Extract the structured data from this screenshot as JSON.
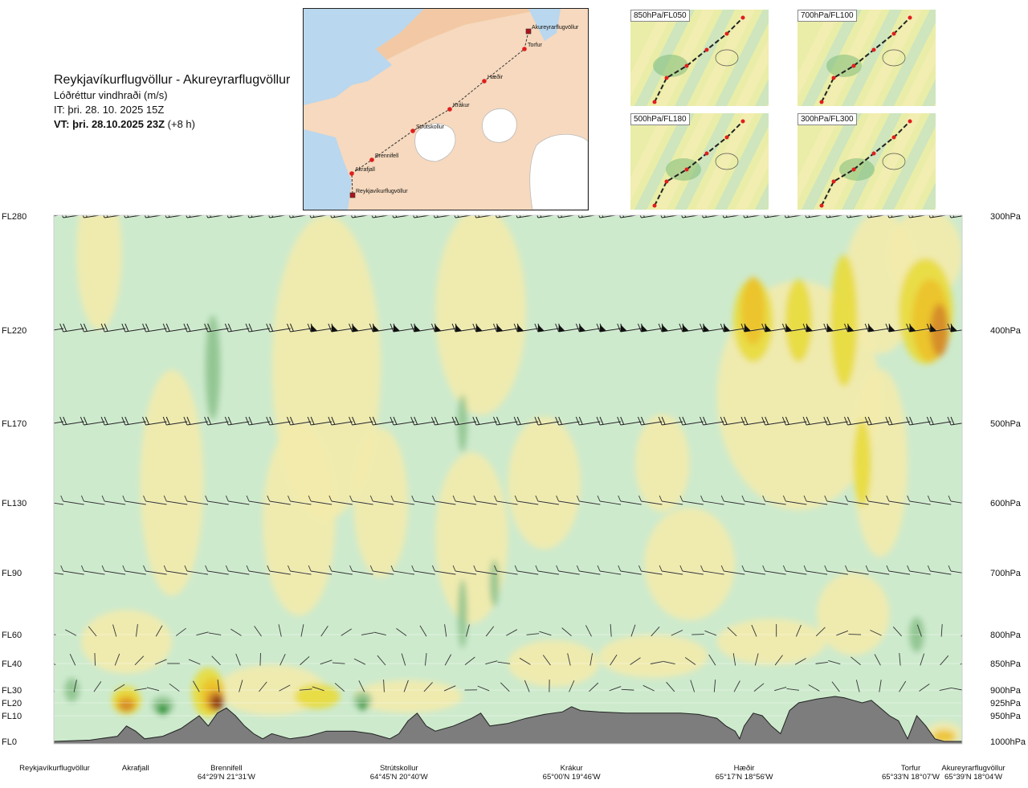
{
  "header": {
    "route": "Reykjavíkurflugvöllur - Akureyrarflugvöllur",
    "variable": "Lóðréttur vindhraði (m/s)",
    "issue_time": "IT: þri. 28. 10. 2025 15Z",
    "valid_time": "VT: þri. 28.10.2025 23Z",
    "lead_time": "(+8 h)"
  },
  "map": {
    "waypoints": [
      {
        "name": "Akureyrarflugvöllur",
        "kind": "airport"
      },
      {
        "name": "Torfur",
        "kind": "point"
      },
      {
        "name": "Hæðir",
        "kind": "point"
      },
      {
        "name": "Krákur",
        "kind": "point"
      },
      {
        "name": "Strútskollur",
        "kind": "point"
      },
      {
        "name": "Brennifell",
        "kind": "point"
      },
      {
        "name": "Akrafjall",
        "kind": "point"
      },
      {
        "name": "Reykjavíkurflugvöllur",
        "kind": "airport"
      }
    ]
  },
  "thumbnails": [
    {
      "label": "850hPa/FL050"
    },
    {
      "label": "700hPa/FL100"
    },
    {
      "label": "500hPa/FL180"
    },
    {
      "label": "300hPa/FL300"
    }
  ],
  "colors": {
    "strong_down": "#1f8f2e",
    "moderate_down": "#8dc28d",
    "weak_down": "#cdeacd",
    "near_zero": "#fefde6",
    "weak_up": "#f3ebac",
    "moderate_up": "#e8dc3c",
    "strong_up": "#ecc12a",
    "very_strong_up": "#d4882a",
    "extreme_up": "#8b3a10",
    "terrain": "#7d7d7d"
  },
  "chart_data": {
    "type": "heatmap",
    "title": "Reykjavíkurflugvöllur - Akureyrarflugvöllur",
    "variable": "Lóðréttur vindhraði (m/s)",
    "x_axis": "distance along route",
    "xlim": [
      0,
      100
    ],
    "flight_levels": [
      {
        "label": "FL280",
        "hpa": "300hPa",
        "fl": 280
      },
      {
        "label": "FL220",
        "hpa": "400hPa",
        "fl": 220
      },
      {
        "label": "FL170",
        "hpa": "500hPa",
        "fl": 170
      },
      {
        "label": "FL130",
        "hpa": "600hPa",
        "fl": 130
      },
      {
        "label": "FL90",
        "hpa": "700hPa",
        "fl": 90
      },
      {
        "label": "FL60",
        "hpa": "800hPa",
        "fl": 60
      },
      {
        "label": "FL40",
        "hpa": "850hPa",
        "fl": 40
      },
      {
        "label": "FL30",
        "hpa": "900hPa",
        "fl": 30
      },
      {
        "label": "FL20",
        "hpa": "925hPa",
        "fl": 20
      },
      {
        "label": "FL10",
        "hpa": "950hPa",
        "fl": 10
      },
      {
        "label": "FL0",
        "hpa": "1000hPa",
        "fl": 0
      }
    ],
    "locations": [
      {
        "name": "Reykjavíkurflugvöllur",
        "coord": "",
        "x": 0
      },
      {
        "name": "Akrafjall",
        "coord": "",
        "x": 9
      },
      {
        "name": "Brennifell",
        "coord": "64°29'N 21°31'W",
        "x": 19
      },
      {
        "name": "Strútskollur",
        "coord": "64°45'N 20°40'W",
        "x": 38
      },
      {
        "name": "Krákur",
        "coord": "65°00'N 19°46'W",
        "x": 57
      },
      {
        "name": "Hæðir",
        "coord": "65°17'N 18°56'W",
        "x": 76
      },
      {
        "name": "Torfur",
        "coord": "65°33'N 18°07'W",
        "x": 94
      },
      {
        "name": "Akureyrarflugvöllur",
        "coord": "65°39'N 18°04'W",
        "x": 100
      }
    ],
    "terrain_profile_fl": [
      [
        0,
        0
      ],
      [
        4,
        0.5
      ],
      [
        7,
        2
      ],
      [
        8,
        6
      ],
      [
        9,
        4
      ],
      [
        10,
        1
      ],
      [
        12,
        2
      ],
      [
        14,
        5
      ],
      [
        16,
        10
      ],
      [
        17,
        6
      ],
      [
        18,
        12
      ],
      [
        19,
        16
      ],
      [
        20,
        10
      ],
      [
        21,
        6
      ],
      [
        22,
        3
      ],
      [
        23,
        1
      ],
      [
        24,
        3
      ],
      [
        26,
        1
      ],
      [
        28,
        2
      ],
      [
        30,
        4
      ],
      [
        33,
        4
      ],
      [
        35,
        3
      ],
      [
        36,
        2
      ],
      [
        37,
        1
      ],
      [
        38,
        3
      ],
      [
        39,
        8
      ],
      [
        40,
        12
      ],
      [
        41,
        6
      ],
      [
        42,
        4
      ],
      [
        44,
        6
      ],
      [
        46,
        9
      ],
      [
        47,
        12
      ],
      [
        48,
        6
      ],
      [
        50,
        7
      ],
      [
        52,
        9
      ],
      [
        54,
        11
      ],
      [
        56,
        13
      ],
      [
        57,
        17
      ],
      [
        58,
        14
      ],
      [
        60,
        13
      ],
      [
        63,
        12
      ],
      [
        66,
        12
      ],
      [
        69,
        12
      ],
      [
        71,
        11
      ],
      [
        73,
        9
      ],
      [
        74,
        6
      ],
      [
        75,
        4
      ],
      [
        75.5,
        1
      ],
      [
        76,
        6
      ],
      [
        77,
        12
      ],
      [
        78,
        10
      ],
      [
        79,
        6
      ],
      [
        80,
        3
      ],
      [
        81,
        14
      ],
      [
        82,
        20
      ],
      [
        84,
        23
      ],
      [
        86,
        25
      ],
      [
        87,
        24
      ],
      [
        88,
        22
      ],
      [
        89,
        20
      ],
      [
        90,
        22
      ],
      [
        91,
        16
      ],
      [
        92,
        10
      ],
      [
        93,
        8
      ],
      [
        94,
        1
      ],
      [
        95,
        10
      ],
      [
        96,
        6
      ],
      [
        97,
        1
      ],
      [
        98,
        0
      ],
      [
        100,
        0
      ]
    ],
    "features": [
      {
        "class": "weak_up",
        "x": 5,
        "fl": 260,
        "sx": 2.5,
        "sy": 60
      },
      {
        "class": "weak_up",
        "x": 30,
        "fl": 200,
        "sx": 6,
        "sy": 80
      },
      {
        "class": "weak_up",
        "x": 47,
        "fl": 230,
        "sx": 5,
        "sy": 60
      },
      {
        "class": "weak_up",
        "x": 46,
        "fl": 110,
        "sx": 4,
        "sy": 45
      },
      {
        "class": "weak_up",
        "x": 27,
        "fl": 120,
        "sx": 4,
        "sy": 50
      },
      {
        "class": "weak_up",
        "x": 13,
        "fl": 140,
        "sx": 3.5,
        "sy": 60
      },
      {
        "class": "weak_up",
        "x": 36,
        "fl": 130,
        "sx": 3,
        "sy": 40
      },
      {
        "class": "weak_up",
        "x": 54,
        "fl": 140,
        "sx": 4,
        "sy": 35
      },
      {
        "class": "weak_up",
        "x": 70,
        "fl": 95,
        "sx": 5,
        "sy": 30
      },
      {
        "class": "weak_up",
        "x": 67,
        "fl": 150,
        "sx": 3,
        "sy": 25
      },
      {
        "class": "weak_up",
        "x": 82,
        "fl": 185,
        "sx": 9,
        "sy": 60
      },
      {
        "class": "weak_up",
        "x": 91,
        "fl": 245,
        "sx": 4,
        "sy": 40
      },
      {
        "class": "weak_up",
        "x": 91,
        "fl": 150,
        "sx": 3,
        "sy": 50
      },
      {
        "class": "weak_up",
        "x": 8,
        "fl": 55,
        "sx": 5,
        "sy": 18
      },
      {
        "class": "weak_up",
        "x": 24,
        "fl": 30,
        "sx": 6,
        "sy": 14
      },
      {
        "class": "weak_up",
        "x": 39,
        "fl": 25,
        "sx": 6,
        "sy": 10
      },
      {
        "class": "weak_up",
        "x": 55,
        "fl": 40,
        "sx": 5,
        "sy": 12
      },
      {
        "class": "weak_up",
        "x": 66,
        "fl": 45,
        "sx": 6,
        "sy": 12
      },
      {
        "class": "weak_up",
        "x": 79,
        "fl": 55,
        "sx": 6,
        "sy": 14
      },
      {
        "class": "weak_up",
        "x": 88,
        "fl": 70,
        "sx": 4,
        "sy": 22
      },
      {
        "class": "weak_up",
        "x": 96,
        "fl": 260,
        "sx": 4,
        "sy": 28
      },
      {
        "class": "weak_up",
        "x": 98,
        "fl": 3,
        "sx": 2,
        "sy": 6
      },
      {
        "class": "moderate_up",
        "x": 77,
        "fl": 225,
        "sx": 2.2,
        "sy": 22
      },
      {
        "class": "moderate_up",
        "x": 82,
        "fl": 225,
        "sx": 1.5,
        "sy": 22
      },
      {
        "class": "moderate_up",
        "x": 87,
        "fl": 225,
        "sx": 1.5,
        "sy": 35
      },
      {
        "class": "moderate_up",
        "x": 96,
        "fl": 230,
        "sx": 3,
        "sy": 28
      },
      {
        "class": "moderate_up",
        "x": 89,
        "fl": 150,
        "sx": 1,
        "sy": 22
      },
      {
        "class": "moderate_up",
        "x": 29,
        "fl": 25,
        "sx": 2.5,
        "sy": 8
      },
      {
        "class": "moderate_up",
        "x": 8,
        "fl": 22,
        "sx": 1.6,
        "sy": 10
      },
      {
        "class": "moderate_up",
        "x": 17,
        "fl": 28,
        "sx": 1.8,
        "sy": 14
      },
      {
        "class": "strong_up",
        "x": 77,
        "fl": 230,
        "sx": 1.3,
        "sy": 18
      },
      {
        "class": "strong_up",
        "x": 96.5,
        "fl": 225,
        "sx": 2,
        "sy": 22
      },
      {
        "class": "strong_up",
        "x": 8,
        "fl": 20,
        "sx": 1.2,
        "sy": 7
      },
      {
        "class": "strong_up",
        "x": 17.5,
        "fl": 26,
        "sx": 1.3,
        "sy": 10
      },
      {
        "class": "strong_up",
        "x": 98,
        "fl": 2,
        "sx": 1.3,
        "sy": 3
      },
      {
        "class": "very_strong_up",
        "x": 97.5,
        "fl": 220,
        "sx": 1,
        "sy": 14
      },
      {
        "class": "very_strong_up",
        "x": 8,
        "fl": 18,
        "sx": 0.9,
        "sy": 5
      },
      {
        "class": "very_strong_up",
        "x": 17.8,
        "fl": 22,
        "sx": 1,
        "sy": 8
      },
      {
        "class": "extreme_up",
        "x": 18,
        "fl": 20,
        "sx": 0.7,
        "sy": 6
      },
      {
        "class": "moderate_down",
        "x": 17.5,
        "fl": 200,
        "sx": 0.8,
        "sy": 28
      },
      {
        "class": "moderate_down",
        "x": 45,
        "fl": 170,
        "sx": 0.5,
        "sy": 15
      },
      {
        "class": "moderate_down",
        "x": 45,
        "fl": 70,
        "sx": 0.5,
        "sy": 18
      },
      {
        "class": "moderate_down",
        "x": 48.5,
        "fl": 85,
        "sx": 0.5,
        "sy": 12
      },
      {
        "class": "moderate_down",
        "x": 95,
        "fl": 60,
        "sx": 0.8,
        "sy": 10
      },
      {
        "class": "moderate_down",
        "x": 2,
        "fl": 30,
        "sx": 0.8,
        "sy": 6
      },
      {
        "class": "moderate_down",
        "x": 12,
        "fl": 18,
        "sx": 1.2,
        "sy": 7
      },
      {
        "class": "moderate_down",
        "x": 34,
        "fl": 22,
        "sx": 1,
        "sy": 7
      },
      {
        "class": "strong_down",
        "x": 12,
        "fl": 15,
        "sx": 0.6,
        "sy": 4
      },
      {
        "class": "strong_down",
        "x": 34,
        "fl": 18,
        "sx": 0.4,
        "sy": 3
      }
    ]
  }
}
